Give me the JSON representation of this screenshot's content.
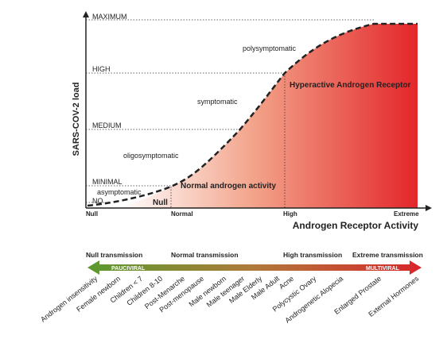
{
  "y_axis": {
    "title": "SARS-COV-2 load",
    "levels": [
      "MAXIMUM",
      "HIGH",
      "MEDIUM",
      "MINIMAL",
      "NO"
    ]
  },
  "curve_labels": [
    "polysymptomatic",
    "symptomatic",
    "oligosymptomatic",
    "asymptomatic"
  ],
  "regions": [
    "Null",
    "Normal androgen activity",
    "Hyperactive Androgen Receptor"
  ],
  "x_axis": {
    "title": "Androgen Receptor Activity",
    "ticks": [
      "Null",
      "Normal",
      "High",
      "Extreme"
    ]
  },
  "transmission": [
    "Null transmission",
    "Normal transmission",
    "High transmission",
    "Extreme transmission"
  ],
  "arrow_labels": [
    "PAUCIVIRAL",
    "MULTIVIRAL"
  ],
  "conditions": [
    "Androgen insensitivity",
    "Female newborn",
    "Children < 7",
    "Children 8-10",
    "Post-Menarche",
    "Post-menopause",
    "Male newborn",
    "Male teenager",
    "Male Elderly",
    "Male Adult",
    "Acne",
    "Polycystic Ovary",
    "Androgenetic Alopecia",
    "Enlarged Prostate",
    "External Hormones"
  ]
}
